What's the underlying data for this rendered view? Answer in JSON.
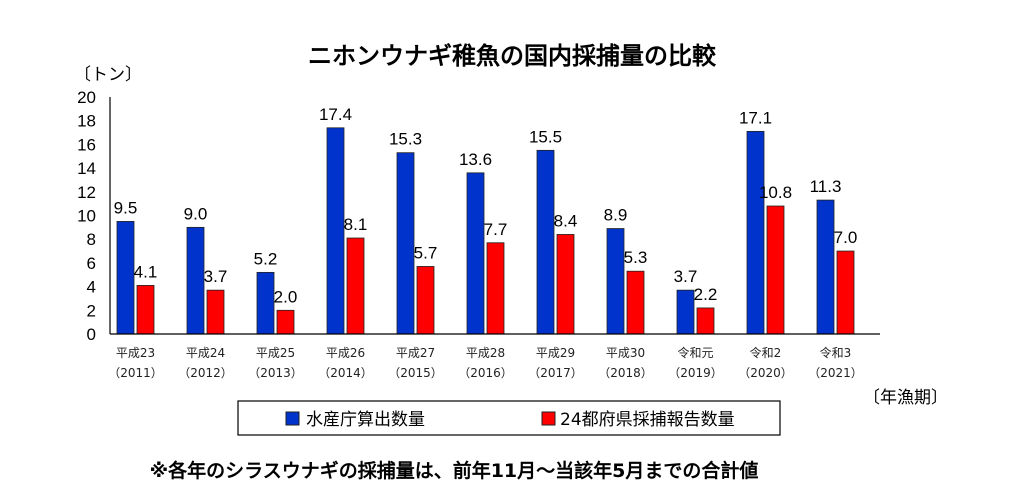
{
  "chart_data": {
    "type": "bar",
    "title": "ニホンウナギ稚魚の国内採捕量の比較",
    "ylabel": "〔トン〕",
    "xlabel": "〔年漁期〕",
    "ylim": [
      0,
      20
    ],
    "yticks": [
      "0",
      "2",
      "4",
      "6",
      "8",
      "10",
      "12",
      "14",
      "16",
      "18",
      "20"
    ],
    "grid": false,
    "legend_position": "bottom",
    "categories": [
      {
        "era": "平成23",
        "year": "（2011）"
      },
      {
        "era": "平成24",
        "year": "（2012）"
      },
      {
        "era": "平成25",
        "year": "（2013）"
      },
      {
        "era": "平成26",
        "year": "（2014）"
      },
      {
        "era": "平成27",
        "year": "（2015）"
      },
      {
        "era": "平成28",
        "year": "（2016）"
      },
      {
        "era": "平成29",
        "year": "（2017）"
      },
      {
        "era": "平成30",
        "year": "（2018）"
      },
      {
        "era": "令和元",
        "year": "（2019）"
      },
      {
        "era": "令和2",
        "year": "（2020）"
      },
      {
        "era": "令和3",
        "year": "（2021）"
      }
    ],
    "series": [
      {
        "name": "水産庁算出数量",
        "color": "#0033CC",
        "values": [
          9.5,
          9.0,
          5.2,
          17.4,
          15.3,
          13.6,
          15.5,
          8.9,
          3.7,
          17.1,
          11.3
        ],
        "labels": [
          "9.5",
          "9.0",
          "5.2",
          "17.4",
          "15.3",
          "13.6",
          "15.5",
          "8.9",
          "3.7",
          "17.1",
          "11.3"
        ]
      },
      {
        "name": "24都府県採捕報告数量",
        "color": "#FF0000",
        "values": [
          4.1,
          3.7,
          2.0,
          8.1,
          5.7,
          7.7,
          8.4,
          5.3,
          2.2,
          10.8,
          7.0
        ],
        "labels": [
          "4.1",
          "3.7",
          "2.0",
          "8.1",
          "5.7",
          "7.7",
          "8.4",
          "5.3",
          "2.2",
          "10.8",
          "7.0"
        ]
      }
    ]
  },
  "note": "※各年のシラスウナギの採捕量は、前年11月～当該年5月までの合計値"
}
